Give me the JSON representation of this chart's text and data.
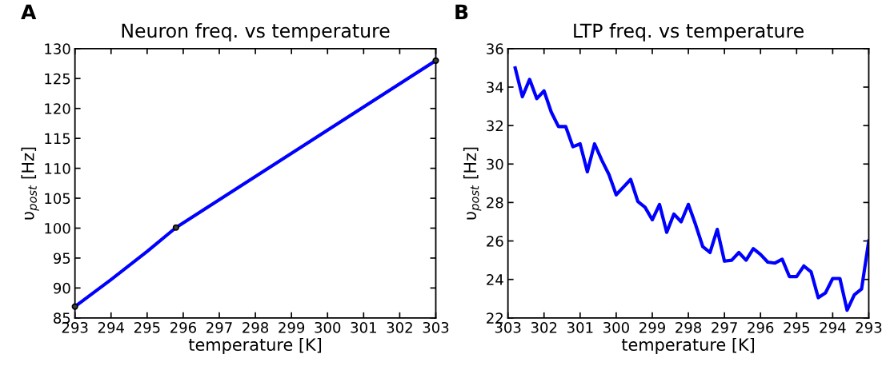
{
  "chart_data": [
    {
      "type": "line",
      "title": "Neuron freq. vs temperature",
      "xlabel": "temperature [K]",
      "ylabel": "υ$_{post}$ [Hz]",
      "annotations": [
        "A"
      ],
      "xlim": [
        293,
        303
      ],
      "xticks": [
        293,
        294,
        295,
        296,
        297,
        298,
        299,
        300,
        301,
        302,
        303
      ],
      "ylim": [
        85,
        130
      ],
      "yticks": [
        85,
        90,
        95,
        100,
        105,
        110,
        115,
        120,
        125,
        130
      ],
      "grid": false,
      "series": [
        {
          "color": "#0000ff",
          "x": [
            293,
            294,
            295,
            295.8,
            303
          ],
          "values": [
            86.9,
            91.4,
            96.1,
            100.1,
            128
          ],
          "marker": "none"
        },
        {
          "type": "scatter",
          "color": "#3c3c3c",
          "x": [
            293,
            295.8,
            303
          ],
          "values": [
            86.9,
            100.1,
            128
          ],
          "marker": "circle"
        }
      ]
    },
    {
      "type": "line",
      "title": "LTP freq. vs temperature",
      "xlabel": "temperature [K]",
      "ylabel": "υ$_{post}$ [Hz]",
      "annotations": [
        "B"
      ],
      "xlim": [
        303,
        293
      ],
      "xticks": [
        303,
        302,
        301,
        300,
        299,
        298,
        297,
        296,
        295,
        294,
        293
      ],
      "ylim": [
        22,
        36
      ],
      "yticks": [
        22,
        24,
        26,
        28,
        30,
        32,
        34,
        36
      ],
      "grid": false,
      "series": [
        {
          "color": "#0000ff",
          "marker": "none",
          "x": [
            302.8,
            302.6,
            302.4,
            302.2,
            302.0,
            301.8,
            301.6,
            301.4,
            301.2,
            301.0,
            300.8,
            300.6,
            300.4,
            300.2,
            300.0,
            299.8,
            299.6,
            299.4,
            299.2,
            299.0,
            298.8,
            298.6,
            298.4,
            298.2,
            298.0,
            297.8,
            297.6,
            297.4,
            297.2,
            297.0,
            296.8,
            296.6,
            296.4,
            296.2,
            296.0,
            295.8,
            295.6,
            295.4,
            295.2,
            295.0,
            294.8,
            294.6,
            294.4,
            294.2,
            294.0,
            293.8,
            293.6,
            293.4,
            293.2,
            293.0
          ],
          "values": [
            35.0,
            33.5,
            34.4,
            33.4,
            33.8,
            32.7,
            31.95,
            31.95,
            30.9,
            31.05,
            29.6,
            31.05,
            30.2,
            29.45,
            28.4,
            28.8,
            29.2,
            28.05,
            27.75,
            27.1,
            27.9,
            26.45,
            27.4,
            27.0,
            27.9,
            26.85,
            25.7,
            25.4,
            26.6,
            24.95,
            25.0,
            25.4,
            25.0,
            25.6,
            25.3,
            24.9,
            24.85,
            25.05,
            24.15,
            24.15,
            24.7,
            24.4,
            23.05,
            23.3,
            24.05,
            24.05,
            22.4,
            23.2,
            23.5,
            26.0
          ]
        }
      ]
    }
  ]
}
